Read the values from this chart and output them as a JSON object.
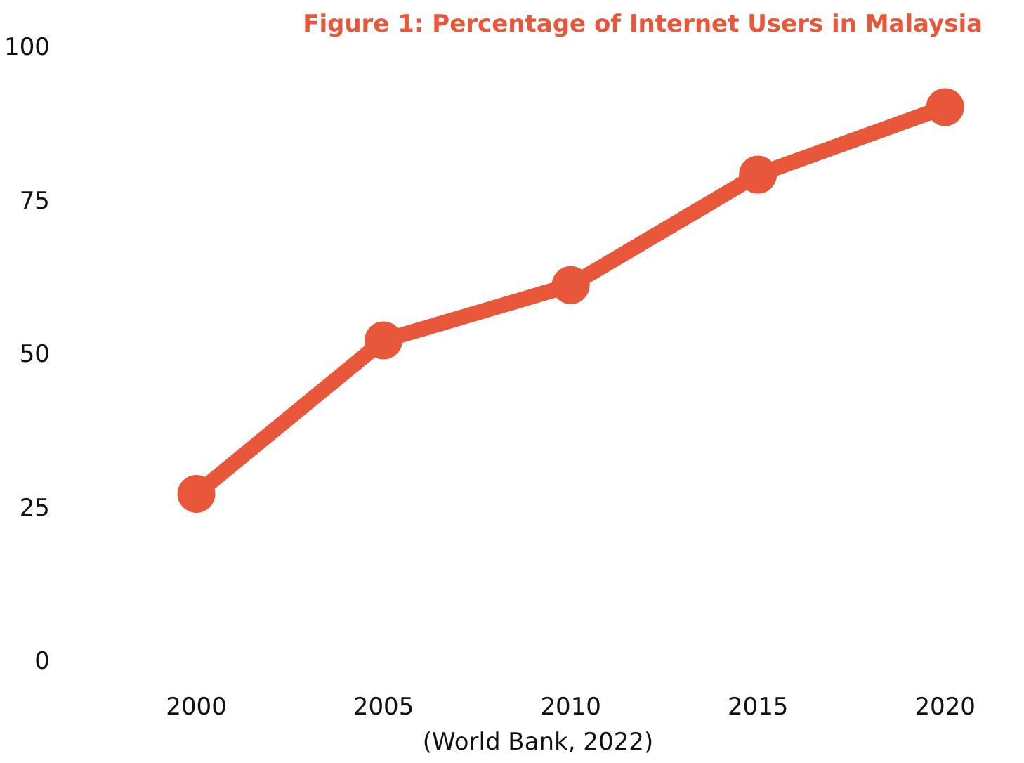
{
  "chart_data": {
    "type": "line",
    "title": "Figure 1: Percentage of Internet Users in Malaysia",
    "categories": [
      "2000",
      "2005",
      "2010",
      "2015",
      "2020"
    ],
    "series": [
      {
        "color": "#e9573a",
        "values": [
          27,
          52,
          61,
          79,
          90
        ]
      }
    ],
    "ylim": [
      0,
      100
    ],
    "yticks": [
      0,
      25,
      50,
      75,
      100
    ],
    "grid": false,
    "marker": "circle",
    "line_style": "solid",
    "annotations": [
      "(World Bank, 2022)"
    ]
  }
}
